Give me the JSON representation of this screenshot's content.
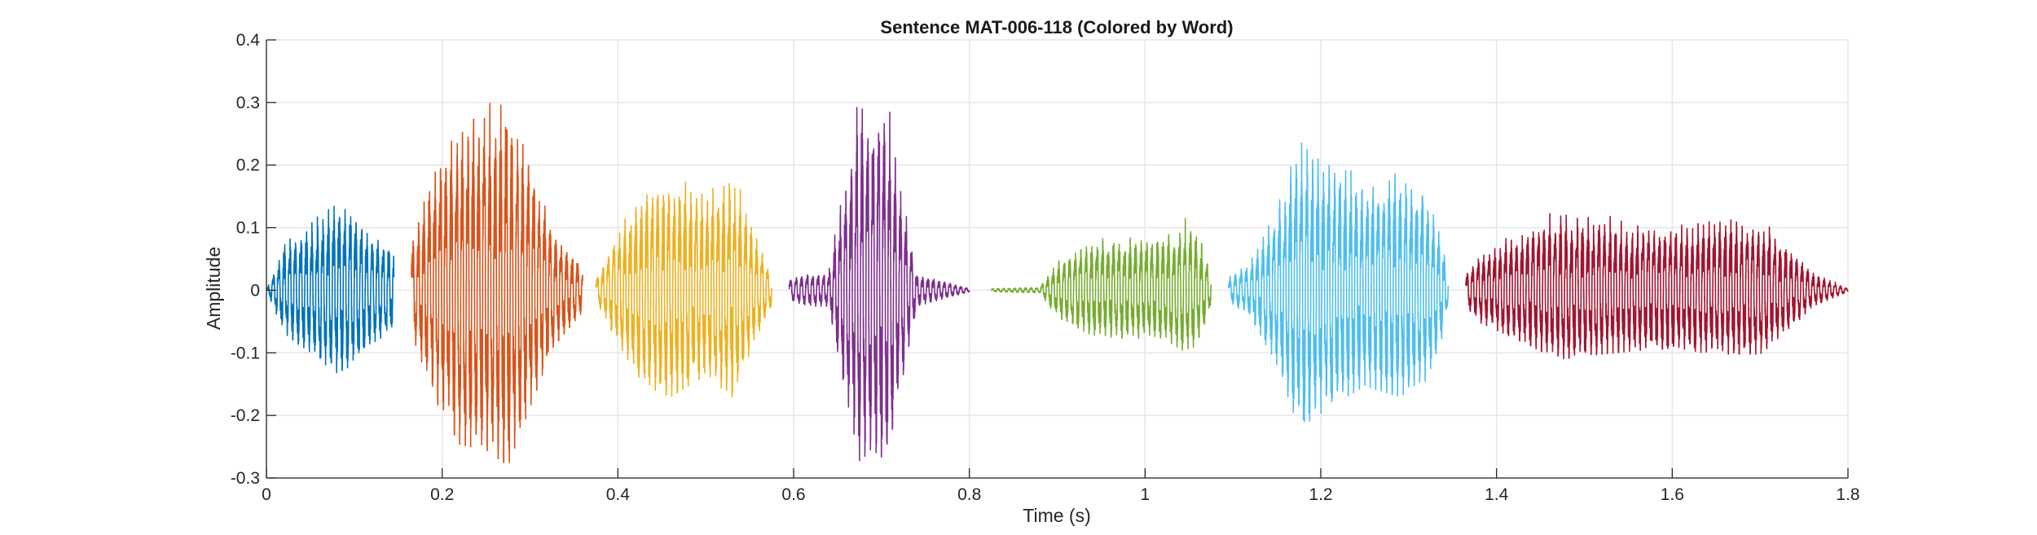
{
  "chart_data": {
    "type": "line",
    "title": "Sentence MAT-006-118 (Colored by Word)",
    "xlabel": "Time (s)",
    "ylabel": "Amplitude",
    "xlim": [
      0,
      1.8
    ],
    "ylim": [
      -0.3,
      0.4
    ],
    "xticks": [
      0,
      0.2,
      0.4,
      0.6,
      0.8,
      1,
      1.2,
      1.4,
      1.6,
      1.8
    ],
    "xtick_labels": [
      "0",
      "0.2",
      "0.4",
      "0.6",
      "0.8",
      "1",
      "1.2",
      "1.4",
      "1.6",
      "1.8"
    ],
    "yticks": [
      -0.3,
      -0.2,
      -0.1,
      0,
      0.1,
      0.2,
      0.3,
      0.4
    ],
    "ytick_labels": [
      "-0.3",
      "-0.2",
      "-0.1",
      "0",
      "0.1",
      "0.2",
      "0.3",
      "0.4"
    ],
    "grid": true,
    "legend": "none",
    "series": [
      {
        "color": "#0072BD",
        "t_start": 0.0,
        "t_end": 0.145,
        "pitch_cycles_per_second": 160,
        "envelope": [
          [
            0.0,
            0.0
          ],
          [
            0.02,
            0.08
          ],
          [
            0.05,
            0.12
          ],
          [
            0.08,
            0.155
          ],
          [
            0.1,
            0.14
          ],
          [
            0.12,
            0.1
          ],
          [
            0.14,
            0.08
          ],
          [
            0.145,
            0.07
          ]
        ]
      },
      {
        "color": "#D95319",
        "t_start": 0.165,
        "t_end": 0.36,
        "pitch_cycles_per_second": 160,
        "envelope": [
          [
            0.165,
            0.08
          ],
          [
            0.19,
            0.2
          ],
          [
            0.22,
            0.29
          ],
          [
            0.25,
            0.3
          ],
          [
            0.275,
            0.33
          ],
          [
            0.3,
            0.22
          ],
          [
            0.33,
            0.1
          ],
          [
            0.36,
            0.04
          ]
        ]
      },
      {
        "color": "#EDB120",
        "t_start": 0.375,
        "t_end": 0.575,
        "pitch_cycles_per_second": 160,
        "envelope": [
          [
            0.375,
            0.02
          ],
          [
            0.4,
            0.1
          ],
          [
            0.43,
            0.18
          ],
          [
            0.46,
            0.2
          ],
          [
            0.5,
            0.16
          ],
          [
            0.53,
            0.2
          ],
          [
            0.56,
            0.08
          ],
          [
            0.575,
            0.03
          ]
        ]
      },
      {
        "color": "#7E2F8E",
        "t_start": 0.595,
        "t_end": 0.8,
        "pitch_cycles_per_second": 160,
        "envelope": [
          [
            0.595,
            0.02
          ],
          [
            0.62,
            0.03
          ],
          [
            0.64,
            0.03
          ],
          [
            0.66,
            0.2
          ],
          [
            0.675,
            0.32
          ],
          [
            0.69,
            0.3
          ],
          [
            0.705,
            0.32
          ],
          [
            0.72,
            0.2
          ],
          [
            0.74,
            0.03
          ],
          [
            0.8,
            0.003
          ]
        ]
      },
      {
        "color": "#77AC30",
        "t_start": 0.825,
        "t_end": 1.075,
        "pitch_cycles_per_second": 160,
        "envelope": [
          [
            0.825,
            0.003
          ],
          [
            0.88,
            0.005
          ],
          [
            0.9,
            0.05
          ],
          [
            0.93,
            0.08
          ],
          [
            0.96,
            0.09
          ],
          [
            1.0,
            0.09
          ],
          [
            1.03,
            0.1
          ],
          [
            1.05,
            0.12
          ],
          [
            1.065,
            0.08
          ],
          [
            1.075,
            0.03
          ]
        ]
      },
      {
        "color": "#4DBEEE",
        "t_start": 1.095,
        "t_end": 1.345,
        "pitch_cycles_per_second": 160,
        "envelope": [
          [
            1.095,
            0.02
          ],
          [
            1.12,
            0.05
          ],
          [
            1.15,
            0.14
          ],
          [
            1.175,
            0.26
          ],
          [
            1.21,
            0.22
          ],
          [
            1.25,
            0.18
          ],
          [
            1.29,
            0.2
          ],
          [
            1.32,
            0.17
          ],
          [
            1.34,
            0.08
          ],
          [
            1.345,
            0.03
          ]
        ]
      },
      {
        "color": "#A2142F",
        "t_start": 1.365,
        "t_end": 1.8,
        "pitch_cycles_per_second": 160,
        "envelope": [
          [
            1.365,
            0.03
          ],
          [
            1.38,
            0.06
          ],
          [
            1.42,
            0.09
          ],
          [
            1.47,
            0.13
          ],
          [
            1.52,
            0.12
          ],
          [
            1.58,
            0.11
          ],
          [
            1.65,
            0.12
          ],
          [
            1.7,
            0.12
          ],
          [
            1.73,
            0.08
          ],
          [
            1.76,
            0.03
          ],
          [
            1.8,
            0.003
          ]
        ]
      }
    ]
  }
}
